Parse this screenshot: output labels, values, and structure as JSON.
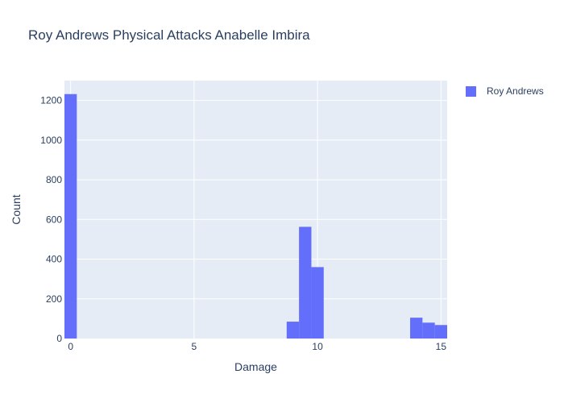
{
  "chart_data": {
    "type": "bar",
    "title": "Roy Andrews Physical Attacks Anabelle Imbira",
    "xlabel": "Damage",
    "ylabel": "Count",
    "xlim": [
      -0.25,
      15.25
    ],
    "ylim": [
      0,
      1300
    ],
    "x_ticks": [
      0,
      5,
      10,
      15
    ],
    "y_ticks": [
      0,
      200,
      400,
      600,
      800,
      1000,
      1200
    ],
    "bin_width": 0.5,
    "grid": true,
    "legend": "top-right",
    "series": [
      {
        "name": "Roy Andrews",
        "color": "#636efa",
        "bins": [
          {
            "x0": -0.25,
            "x1": 0.25,
            "count": 1232
          },
          {
            "x0": 8.75,
            "x1": 9.25,
            "count": 85
          },
          {
            "x0": 9.25,
            "x1": 9.75,
            "count": 563
          },
          {
            "x0": 9.75,
            "x1": 10.25,
            "count": 360
          },
          {
            "x0": 13.75,
            "x1": 14.25,
            "count": 105
          },
          {
            "x0": 14.25,
            "x1": 14.75,
            "count": 80
          },
          {
            "x0": 14.75,
            "x1": 15.25,
            "count": 68
          }
        ]
      }
    ]
  }
}
